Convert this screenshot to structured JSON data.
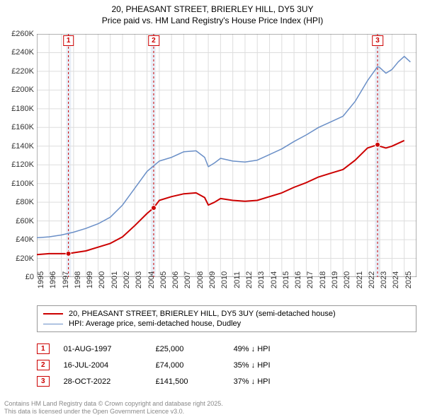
{
  "title": {
    "line1": "20, PHEASANT STREET, BRIERLEY HILL, DY5 3UY",
    "line2": "Price paid vs. HM Land Registry's House Price Index (HPI)",
    "fontsize": 12
  },
  "chart": {
    "type": "line",
    "background_color": "#ffffff",
    "grid_color": "#dddddd",
    "axis_color": "#666666",
    "xlim": [
      1995,
      2026
    ],
    "ylim": [
      0,
      260000
    ],
    "ytick_step": 20000,
    "yticks": [
      "£0",
      "£20K",
      "£40K",
      "£60K",
      "£80K",
      "£100K",
      "£120K",
      "£140K",
      "£160K",
      "£180K",
      "£200K",
      "£220K",
      "£240K",
      "£260K"
    ],
    "xticks": [
      1995,
      1996,
      1997,
      1998,
      1999,
      2000,
      2001,
      2002,
      2003,
      2004,
      2005,
      2006,
      2007,
      2008,
      2009,
      2010,
      2011,
      2012,
      2013,
      2014,
      2015,
      2016,
      2017,
      2018,
      2019,
      2020,
      2021,
      2022,
      2023,
      2024,
      2025
    ],
    "vbands": [
      {
        "from": 1997.4,
        "to": 1997.8,
        "color": "#e8eef7"
      },
      {
        "from": 2004.3,
        "to": 2004.7,
        "color": "#e8eef7"
      },
      {
        "from": 2022.6,
        "to": 2023.0,
        "color": "#e8eef7"
      }
    ],
    "series": [
      {
        "name": "price_paid",
        "label": "20, PHEASANT STREET, BRIERLEY HILL, DY5 3UY (semi-detached house)",
        "color": "#cc0000",
        "line_width": 2,
        "points": [
          [
            1995.0,
            24000
          ],
          [
            1996.0,
            25000
          ],
          [
            1997.0,
            25000
          ],
          [
            1997.58,
            25000
          ],
          [
            1998.0,
            26000
          ],
          [
            1999.0,
            28000
          ],
          [
            2000.0,
            32000
          ],
          [
            2001.0,
            36000
          ],
          [
            2002.0,
            43000
          ],
          [
            2003.0,
            55000
          ],
          [
            2004.0,
            68000
          ],
          [
            2004.54,
            74000
          ],
          [
            2005.0,
            82000
          ],
          [
            2006.0,
            86000
          ],
          [
            2007.0,
            89000
          ],
          [
            2008.0,
            90000
          ],
          [
            2008.7,
            85000
          ],
          [
            2009.0,
            77000
          ],
          [
            2009.5,
            80000
          ],
          [
            2010.0,
            84000
          ],
          [
            2011.0,
            82000
          ],
          [
            2012.0,
            81000
          ],
          [
            2013.0,
            82000
          ],
          [
            2014.0,
            86000
          ],
          [
            2015.0,
            90000
          ],
          [
            2016.0,
            96000
          ],
          [
            2017.0,
            101000
          ],
          [
            2018.0,
            107000
          ],
          [
            2019.0,
            111000
          ],
          [
            2020.0,
            115000
          ],
          [
            2021.0,
            125000
          ],
          [
            2022.0,
            138000
          ],
          [
            2022.82,
            141500
          ],
          [
            2023.0,
            140000
          ],
          [
            2023.5,
            138000
          ],
          [
            2024.0,
            140000
          ],
          [
            2025.0,
            146000
          ]
        ],
        "markers": [
          {
            "x": 1997.58,
            "y": 25000
          },
          {
            "x": 2004.54,
            "y": 74000
          },
          {
            "x": 2022.82,
            "y": 141500
          }
        ]
      },
      {
        "name": "hpi",
        "label": "HPI: Average price, semi-detached house, Dudley",
        "color": "#6a8fc7",
        "line_width": 1.5,
        "points": [
          [
            1995.0,
            42000
          ],
          [
            1996.0,
            43000
          ],
          [
            1997.0,
            45000
          ],
          [
            1998.0,
            48000
          ],
          [
            1999.0,
            52000
          ],
          [
            2000.0,
            57000
          ],
          [
            2001.0,
            64000
          ],
          [
            2002.0,
            77000
          ],
          [
            2003.0,
            95000
          ],
          [
            2004.0,
            113000
          ],
          [
            2005.0,
            124000
          ],
          [
            2006.0,
            128000
          ],
          [
            2007.0,
            134000
          ],
          [
            2008.0,
            135000
          ],
          [
            2008.7,
            128000
          ],
          [
            2009.0,
            118000
          ],
          [
            2009.5,
            122000
          ],
          [
            2010.0,
            127000
          ],
          [
            2011.0,
            124000
          ],
          [
            2012.0,
            123000
          ],
          [
            2013.0,
            125000
          ],
          [
            2014.0,
            131000
          ],
          [
            2015.0,
            137000
          ],
          [
            2016.0,
            145000
          ],
          [
            2017.0,
            152000
          ],
          [
            2018.0,
            160000
          ],
          [
            2019.0,
            166000
          ],
          [
            2020.0,
            172000
          ],
          [
            2021.0,
            188000
          ],
          [
            2022.0,
            210000
          ],
          [
            2022.82,
            225000
          ],
          [
            2023.0,
            224000
          ],
          [
            2023.5,
            218000
          ],
          [
            2024.0,
            222000
          ],
          [
            2024.5,
            230000
          ],
          [
            2025.0,
            236000
          ],
          [
            2025.5,
            230000
          ]
        ]
      }
    ],
    "flags": [
      {
        "n": "1",
        "x": 1997.58
      },
      {
        "n": "2",
        "x": 2004.54
      },
      {
        "n": "3",
        "x": 2022.82
      }
    ]
  },
  "legend": {
    "items": [
      {
        "color": "#cc0000",
        "width": 2,
        "label": "20, PHEASANT STREET, BRIERLEY HILL, DY5 3UY (semi-detached house)"
      },
      {
        "color": "#6a8fc7",
        "width": 1.5,
        "label": "HPI: Average price, semi-detached house, Dudley"
      }
    ]
  },
  "sales": [
    {
      "n": "1",
      "date": "01-AUG-1997",
      "price": "£25,000",
      "vs": "49% ↓ HPI"
    },
    {
      "n": "2",
      "date": "16-JUL-2004",
      "price": "£74,000",
      "vs": "35% ↓ HPI"
    },
    {
      "n": "3",
      "date": "28-OCT-2022",
      "price": "£141,500",
      "vs": "37% ↓ HPI"
    }
  ],
  "footer": {
    "line1": "Contains HM Land Registry data © Crown copyright and database right 2025.",
    "line2": "This data is licensed under the Open Government Licence v3.0."
  }
}
